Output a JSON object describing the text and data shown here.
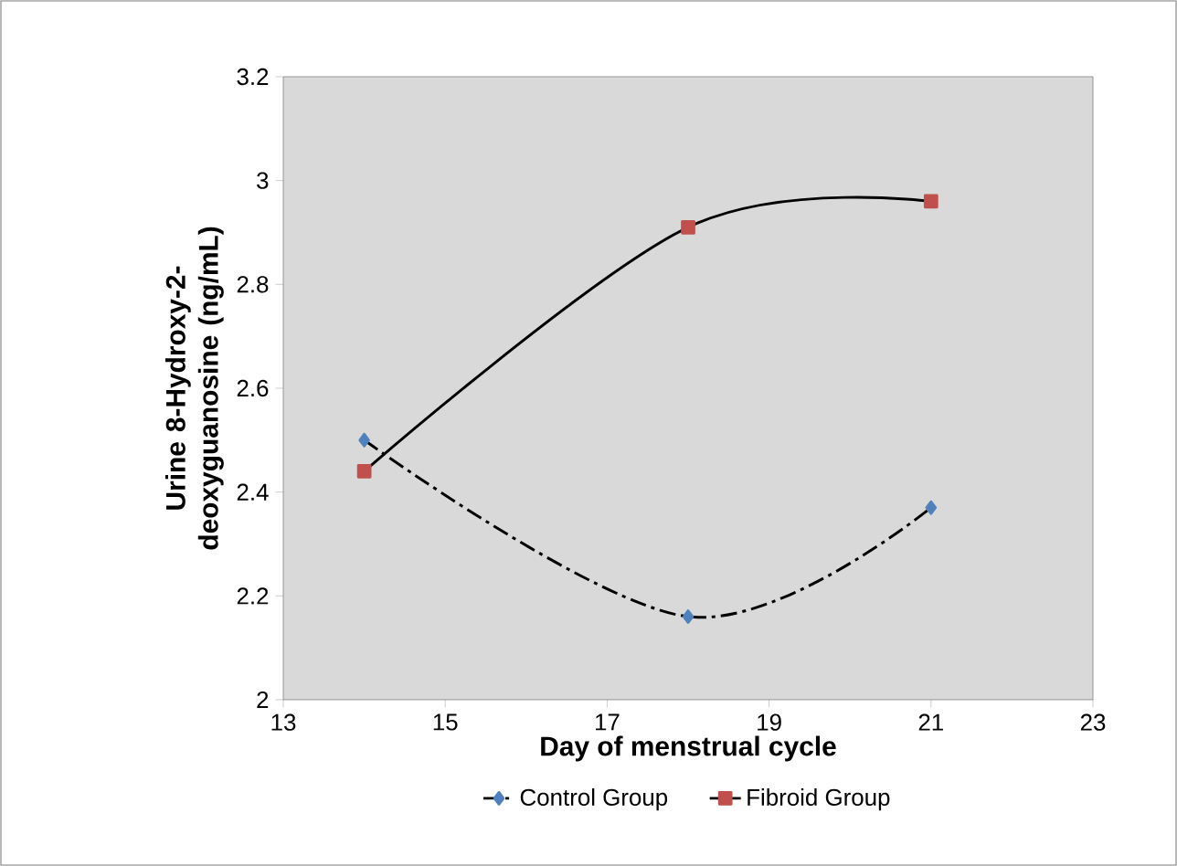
{
  "chart_data": {
    "type": "line",
    "xlabel": "Day of menstrual cycle",
    "ylabel": "Urine  8-Hydroxy-2-deoxyguanosine (ng/mL)",
    "xlim": [
      13,
      23
    ],
    "xticks": [
      13,
      15,
      17,
      19,
      21,
      23
    ],
    "ylim": [
      2,
      3.2
    ],
    "yticks": [
      2,
      2.2,
      2.4,
      2.6,
      2.8,
      3,
      3.2
    ],
    "grid": false,
    "legend": "bottom",
    "series": [
      {
        "name": "Control Group",
        "color": "#4f81bd",
        "marker": "diamond",
        "line_style": "dashed",
        "x": [
          14,
          18,
          21
        ],
        "values": [
          2.5,
          2.16,
          2.37
        ]
      },
      {
        "name": "Fibroid Group",
        "color": "#c0504d",
        "marker": "square",
        "line_style": "solid",
        "x": [
          14,
          18,
          21
        ],
        "values": [
          2.44,
          2.91,
          2.96
        ]
      }
    ]
  }
}
